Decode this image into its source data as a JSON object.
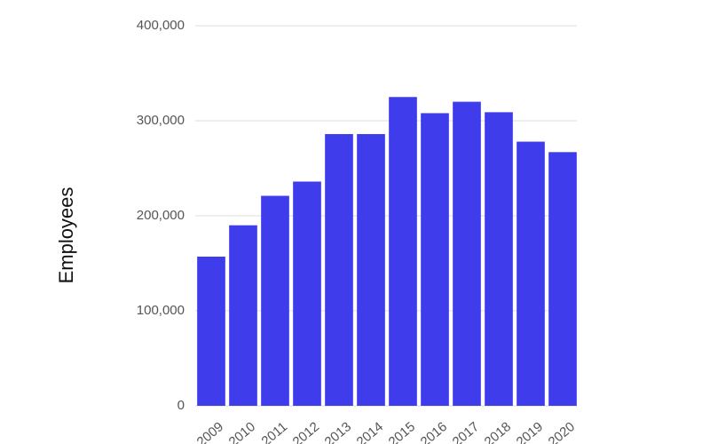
{
  "chart_data": {
    "type": "bar",
    "y_label": "Employees",
    "categories": [
      "2009",
      "2010",
      "2011",
      "2012",
      "2013",
      "2014",
      "2015",
      "2016",
      "2017",
      "2018",
      "2019",
      "2020"
    ],
    "values": [
      157000,
      190000,
      221000,
      236000,
      286000,
      286000,
      325000,
      308000,
      320000,
      309000,
      278000,
      267000
    ],
    "color": "#3f3ceb",
    "ylim": [
      0,
      400000
    ],
    "yticks": [
      0,
      {
        "value": 100000,
        "label": "100,000"
      },
      {
        "value": 200000,
        "label": "200,000"
      },
      {
        "value": 300000,
        "label": "300,000"
      },
      {
        "value": 400000,
        "label": "400,000"
      }
    ],
    "grid": true
  }
}
